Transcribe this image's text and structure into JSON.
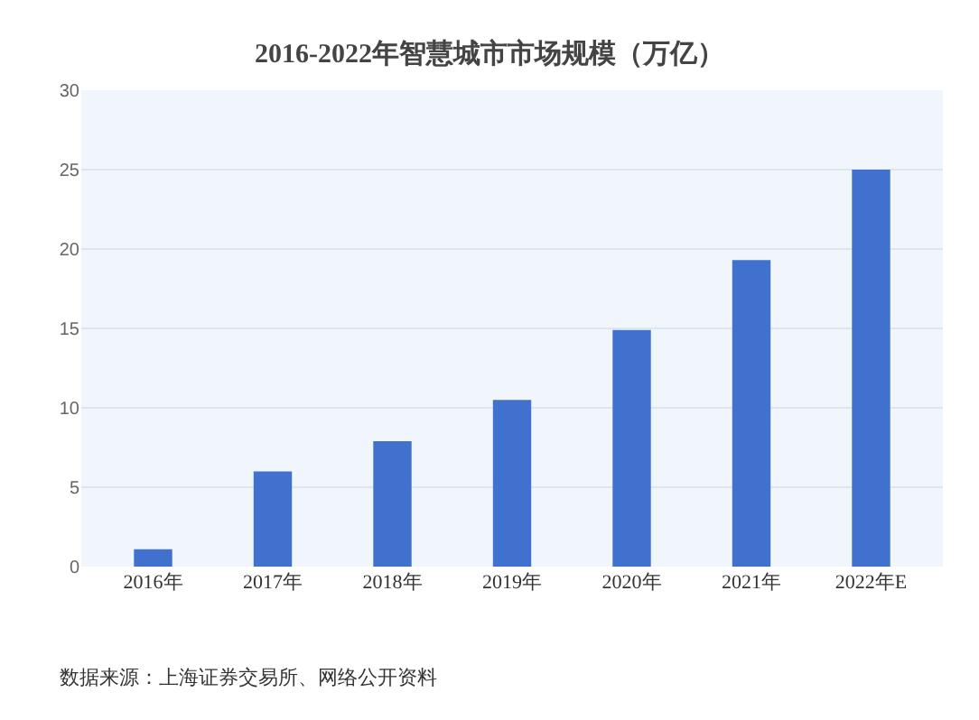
{
  "chart_data": {
    "type": "bar",
    "title": "2016-2022年智慧城市市场规模（万亿）",
    "categories": [
      "2016年",
      "2017年",
      "2018年",
      "2019年",
      "2020年",
      "2021年",
      "2022年E"
    ],
    "values": [
      1.1,
      6.0,
      7.9,
      10.5,
      14.9,
      19.3,
      25
    ],
    "color": "#4171ce",
    "ylim": [
      0,
      30
    ],
    "yticks": [
      0,
      5,
      10,
      15,
      20,
      25,
      30
    ],
    "grid": "y",
    "annotations": [
      "数据来源：上海证券交易所、网络公开资料"
    ]
  }
}
